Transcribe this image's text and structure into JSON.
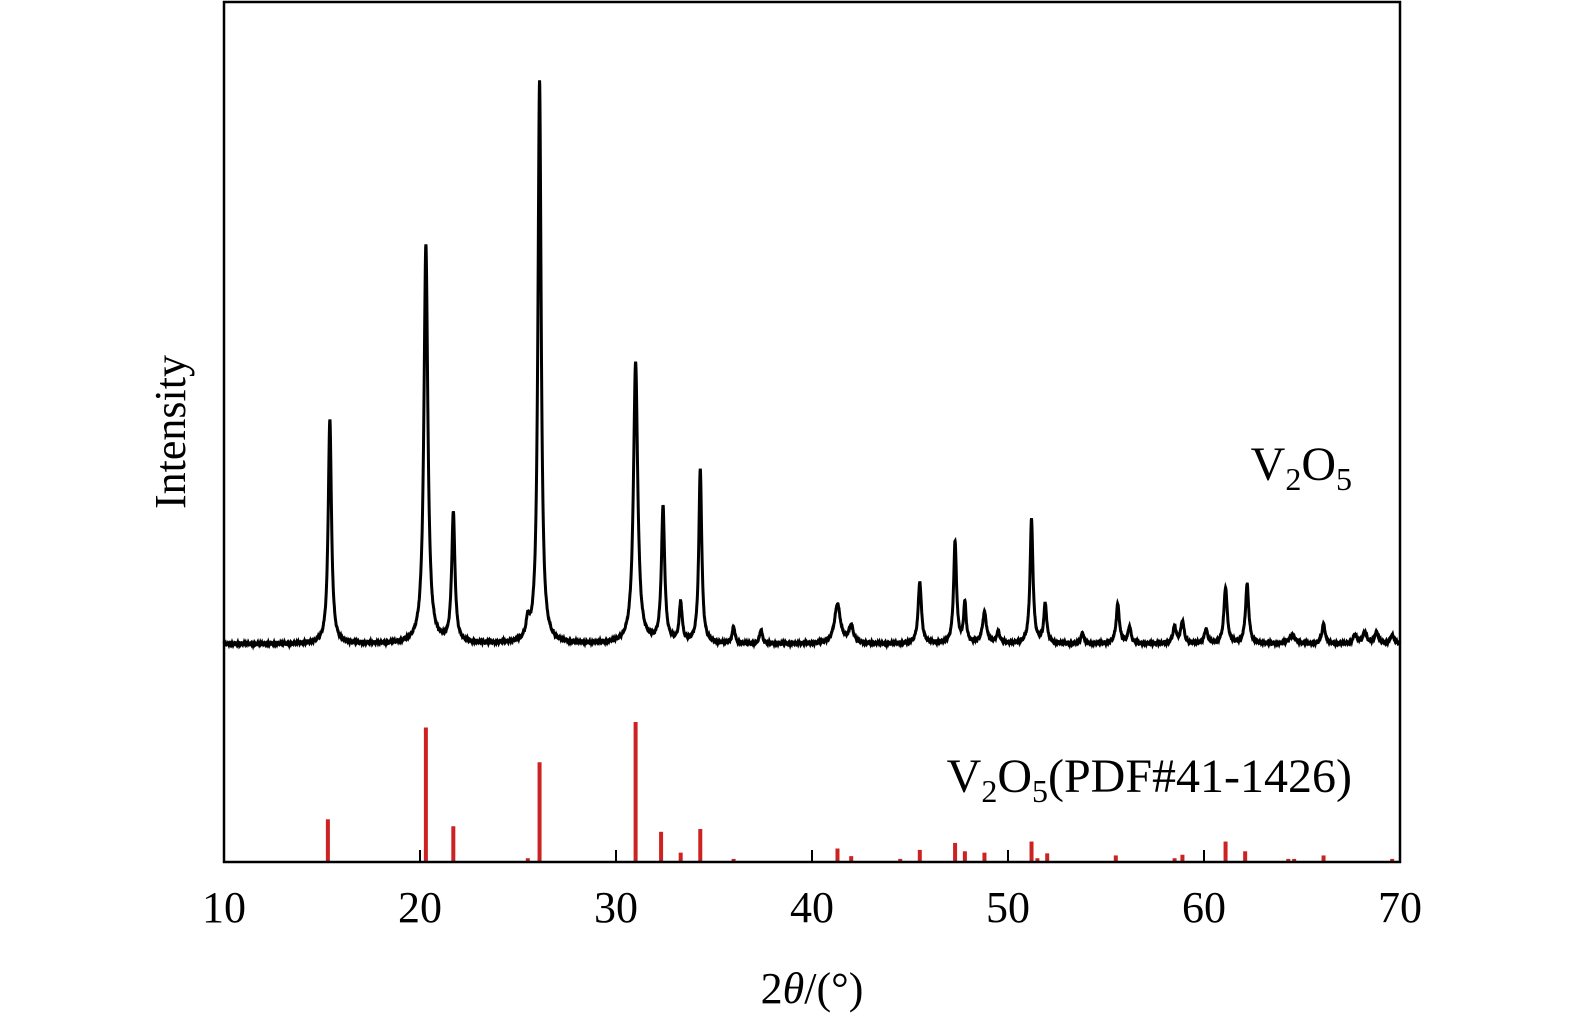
{
  "chart_data": {
    "type": "line",
    "xlabel_prefix": "2",
    "xlabel_theta": "θ",
    "xlabel_suffix": "/(°)",
    "ylabel": "Intensity",
    "xlim": [
      10,
      70
    ],
    "xticks": [
      "10",
      "20",
      "30",
      "40",
      "50",
      "60",
      "70"
    ],
    "grid": false,
    "colors": {
      "measured": "#000000",
      "reference": "#cc2222",
      "axis": "#000000"
    },
    "series": [
      {
        "name": "V2O5",
        "label_parts": [
          "V",
          "2",
          "O",
          "5"
        ],
        "type": "line",
        "baseline": 0,
        "peaks": [
          {
            "x": 15.4,
            "y": 40,
            "w": 0.1
          },
          {
            "x": 20.3,
            "y": 71,
            "w": 0.12
          },
          {
            "x": 21.7,
            "y": 23,
            "w": 0.1
          },
          {
            "x": 25.5,
            "y": 3,
            "w": 0.1
          },
          {
            "x": 26.1,
            "y": 100,
            "w": 0.1
          },
          {
            "x": 31.0,
            "y": 50,
            "w": 0.13
          },
          {
            "x": 32.4,
            "y": 24,
            "w": 0.1
          },
          {
            "x": 33.3,
            "y": 7,
            "w": 0.09
          },
          {
            "x": 34.3,
            "y": 31,
            "w": 0.09
          },
          {
            "x": 36.0,
            "y": 3,
            "w": 0.08
          },
          {
            "x": 37.4,
            "y": 2.5,
            "w": 0.08
          },
          {
            "x": 41.3,
            "y": 7,
            "w": 0.18
          },
          {
            "x": 42.0,
            "y": 3,
            "w": 0.14
          },
          {
            "x": 45.5,
            "y": 11,
            "w": 0.1
          },
          {
            "x": 47.3,
            "y": 18,
            "w": 0.09
          },
          {
            "x": 47.8,
            "y": 7,
            "w": 0.08
          },
          {
            "x": 48.8,
            "y": 5.5,
            "w": 0.12
          },
          {
            "x": 49.5,
            "y": 2,
            "w": 0.1
          },
          {
            "x": 51.2,
            "y": 22,
            "w": 0.09
          },
          {
            "x": 51.9,
            "y": 7,
            "w": 0.09
          },
          {
            "x": 53.8,
            "y": 2,
            "w": 0.08
          },
          {
            "x": 55.6,
            "y": 7,
            "w": 0.1
          },
          {
            "x": 56.2,
            "y": 3,
            "w": 0.09
          },
          {
            "x": 58.5,
            "y": 3,
            "w": 0.1
          },
          {
            "x": 58.9,
            "y": 4,
            "w": 0.1
          },
          {
            "x": 60.1,
            "y": 2.5,
            "w": 0.1
          },
          {
            "x": 61.1,
            "y": 10,
            "w": 0.1
          },
          {
            "x": 62.2,
            "y": 10.5,
            "w": 0.1
          },
          {
            "x": 64.5,
            "y": 1.5,
            "w": 0.18
          },
          {
            "x": 66.1,
            "y": 3.5,
            "w": 0.1
          },
          {
            "x": 67.7,
            "y": 1.5,
            "w": 0.12
          },
          {
            "x": 68.2,
            "y": 2,
            "w": 0.12
          },
          {
            "x": 68.8,
            "y": 2,
            "w": 0.12
          },
          {
            "x": 69.6,
            "y": 1.5,
            "w": 0.12
          }
        ]
      },
      {
        "name": "V2O5(PDF#41-1426)",
        "label_parts": [
          "V",
          "2",
          "O",
          "5",
          "(PDF#41-1426)"
        ],
        "type": "stick",
        "lines": [
          {
            "x": 15.3,
            "y": 30
          },
          {
            "x": 20.3,
            "y": 96
          },
          {
            "x": 21.7,
            "y": 25
          },
          {
            "x": 25.5,
            "y": 2
          },
          {
            "x": 26.1,
            "y": 71
          },
          {
            "x": 31.0,
            "y": 100
          },
          {
            "x": 32.3,
            "y": 21
          },
          {
            "x": 33.3,
            "y": 6
          },
          {
            "x": 34.3,
            "y": 23
          },
          {
            "x": 36.0,
            "y": 1.5
          },
          {
            "x": 41.3,
            "y": 9
          },
          {
            "x": 42.0,
            "y": 3.5
          },
          {
            "x": 44.5,
            "y": 1.5
          },
          {
            "x": 45.5,
            "y": 8
          },
          {
            "x": 47.3,
            "y": 13
          },
          {
            "x": 47.8,
            "y": 7
          },
          {
            "x": 48.8,
            "y": 6
          },
          {
            "x": 51.2,
            "y": 14
          },
          {
            "x": 51.5,
            "y": 2
          },
          {
            "x": 52.0,
            "y": 5.5
          },
          {
            "x": 55.5,
            "y": 4
          },
          {
            "x": 58.5,
            "y": 2
          },
          {
            "x": 58.9,
            "y": 4.5
          },
          {
            "x": 61.1,
            "y": 14
          },
          {
            "x": 62.1,
            "y": 7
          },
          {
            "x": 64.3,
            "y": 1.5
          },
          {
            "x": 64.6,
            "y": 1.5
          },
          {
            "x": 66.1,
            "y": 4
          },
          {
            "x": 69.6,
            "y": 1.5
          }
        ]
      }
    ]
  }
}
